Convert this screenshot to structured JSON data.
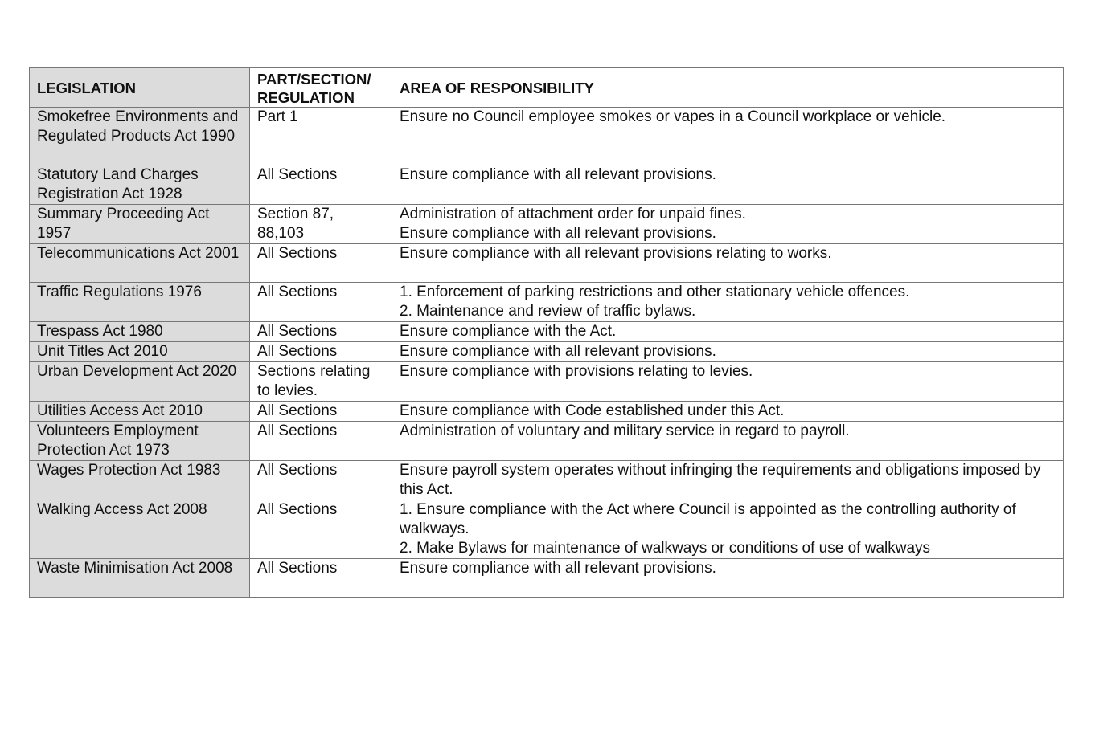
{
  "table": {
    "headers": [
      "LEGISLATION",
      "PART/SECTION/ REGULATION",
      "AREA OF RESPONSIBILITY"
    ],
    "rows": [
      {
        "legislation": "Smokefree Environments and Regulated Products Act 1990",
        "section": "Part 1",
        "area": [
          "Ensure no Council employee smokes or vapes in a Council workplace or vehicle."
        ],
        "h": 72
      },
      {
        "legislation": "Statutory Land Charges Registration Act 1928",
        "section": "All Sections",
        "area": [
          "Ensure compliance with all relevant provisions."
        ],
        "h": 48
      },
      {
        "legislation": "Summary Proceeding Act 1957",
        "section": "Section 87, 88,103",
        "area": [
          "Administration of attachment order for unpaid fines.",
          "Ensure compliance with all relevant provisions."
        ],
        "h": 48
      },
      {
        "legislation": "Telecommunications Act 2001",
        "section": "All Sections",
        "area": [
          "Ensure compliance with all relevant provisions relating to works."
        ],
        "h": 48
      },
      {
        "legislation": "Traffic Regulations 1976",
        "section": "All Sections",
        "area": [
          "1.  Enforcement of parking restrictions and other stationary vehicle offences.",
          "2.  Maintenance and review of traffic bylaws."
        ],
        "h": 48
      },
      {
        "legislation": "Trespass Act 1980",
        "section": "All Sections",
        "area": [
          "Ensure compliance with the Act."
        ],
        "h": 24
      },
      {
        "legislation": "Unit Titles Act 2010",
        "section": "All Sections",
        "area": [
          "Ensure compliance with all relevant provisions."
        ],
        "h": 24
      },
      {
        "legislation": "Urban Development Act 2020",
        "section": "Sections relating to levies.",
        "area": [
          "Ensure compliance with provisions relating to levies."
        ],
        "h": 48
      },
      {
        "legislation": "Utilities Access Act 2010",
        "section": "All Sections",
        "area": [
          "Ensure compliance with Code established under this Act."
        ],
        "h": 24
      },
      {
        "legislation": "Volunteers Employment Protection Act 1973",
        "section": "All Sections",
        "area": [
          "Administration of voluntary and military service in regard to payroll."
        ],
        "h": 48
      },
      {
        "legislation": "Wages Protection Act 1983",
        "section": "All Sections",
        "area": [
          "Ensure payroll system operates without infringing the requirements and obligations imposed by this Act."
        ],
        "h": 48
      },
      {
        "legislation": "Walking Access Act 2008",
        "section": "All Sections",
        "area": [
          "1. Ensure compliance with the Act where Council is appointed as the controlling authority of walkways.",
          "2. Make Bylaws for maintenance of walkways or conditions of use of walkways"
        ],
        "h": 72
      },
      {
        "legislation": "Waste Minimisation Act 2008",
        "section": "All Sections",
        "area": [
          "Ensure compliance with all relevant provisions."
        ],
        "h": 48
      }
    ]
  }
}
